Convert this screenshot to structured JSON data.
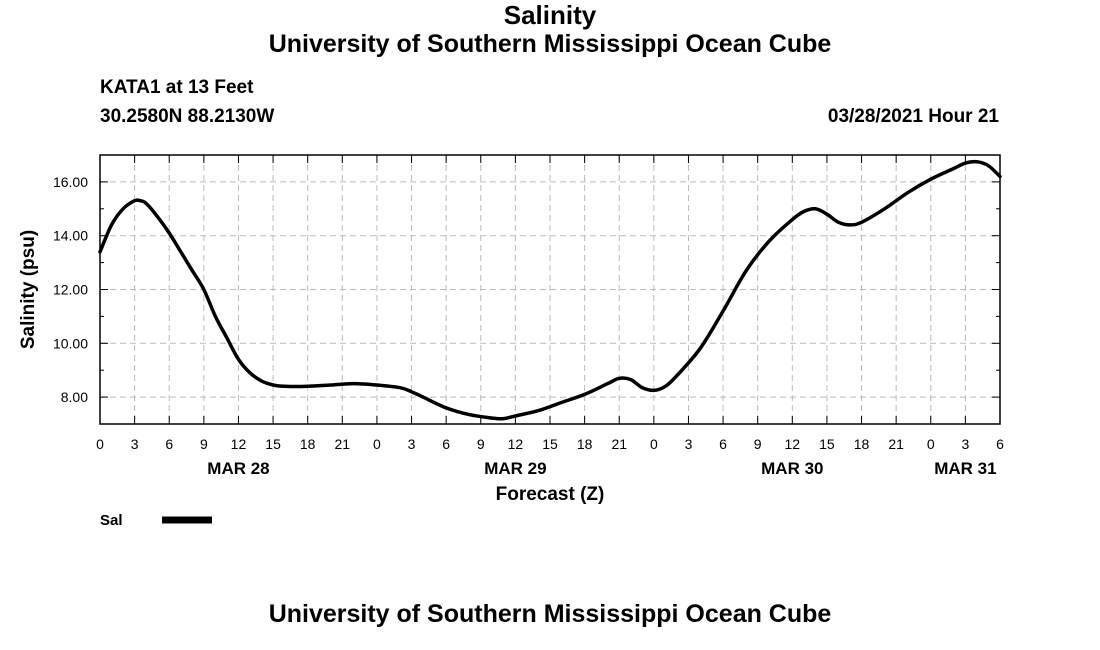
{
  "header": {
    "title": "University of Southern Mississippi Ocean Cube",
    "station": "KATA1 at 13 Feet",
    "coords": "30.2580N  88.2130W",
    "parameter": "Salinity",
    "datetime": "03/28/2021 Hour 21"
  },
  "footer": {
    "title": "University of Southern Mississippi Ocean Cube"
  },
  "colors": {
    "line": "#000000",
    "grid": "#bbbbbb"
  },
  "chart_data": {
    "type": "line",
    "title": "Salinity",
    "xlabel": "Forecast (Z)",
    "ylabel": "Salinity (psu)",
    "xlim": [
      0,
      78
    ],
    "ylim": [
      7.0,
      17.0
    ],
    "x_tick_labels": [
      "0",
      "3",
      "6",
      "9",
      "12",
      "15",
      "18",
      "21",
      "0",
      "3",
      "6",
      "9",
      "12",
      "15",
      "18",
      "21",
      "0",
      "3",
      "6",
      "9",
      "12",
      "15",
      "18",
      "21",
      "0",
      "3",
      "6"
    ],
    "y_ticks": [
      8,
      10,
      12,
      14,
      16
    ],
    "y_tick_labels": [
      "8.00",
      "10.00",
      "12.00",
      "14.00",
      "16.00"
    ],
    "date_labels": [
      {
        "label": "MAR 28",
        "hours": 12
      },
      {
        "label": "MAR 29",
        "hours": 36
      },
      {
        "label": "MAR 30",
        "hours": 60
      },
      {
        "label": "MAR 31",
        "hours": 75
      }
    ],
    "grid": true,
    "legend_position": "bottom-left",
    "series": [
      {
        "name": "Sal",
        "x": [
          0,
          1,
          2,
          3,
          3.5,
          4,
          5,
          6,
          7,
          8,
          9,
          10,
          11,
          12,
          13,
          14,
          15,
          16,
          18,
          20,
          22,
          24,
          26,
          27,
          28,
          30,
          32,
          34,
          35,
          36,
          38,
          40,
          42,
          44,
          45,
          46,
          47,
          48,
          49,
          50,
          52,
          54,
          56,
          58,
          60,
          61,
          62,
          63,
          64,
          65,
          66,
          68,
          70,
          72,
          74,
          75,
          76,
          77,
          78
        ],
        "values": [
          13.4,
          14.4,
          15.0,
          15.3,
          15.3,
          15.2,
          14.7,
          14.1,
          13.4,
          12.7,
          12.0,
          11.0,
          10.2,
          9.4,
          8.9,
          8.6,
          8.45,
          8.4,
          8.4,
          8.45,
          8.5,
          8.45,
          8.35,
          8.2,
          8.0,
          7.6,
          7.35,
          7.22,
          7.2,
          7.3,
          7.5,
          7.8,
          8.1,
          8.5,
          8.7,
          8.65,
          8.35,
          8.25,
          8.4,
          8.8,
          9.8,
          11.2,
          12.7,
          13.8,
          14.6,
          14.9,
          15.0,
          14.8,
          14.5,
          14.4,
          14.5,
          15.0,
          15.6,
          16.1,
          16.5,
          16.7,
          16.75,
          16.6,
          16.2
        ]
      }
    ]
  }
}
